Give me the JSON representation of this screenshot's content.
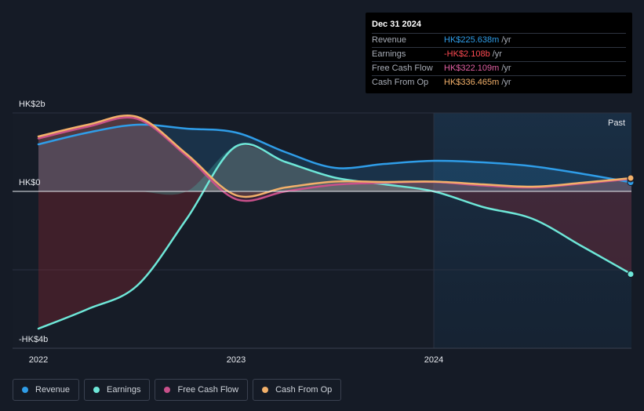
{
  "tooltip": {
    "date": "Dec 31 2024",
    "rows": [
      {
        "label": "Revenue",
        "value": "HK$225.638m",
        "unit": "/yr",
        "color": "#2f9de8"
      },
      {
        "label": "Earnings",
        "value": "-HK$2.108b",
        "unit": "/yr",
        "color": "#ff4a52"
      },
      {
        "label": "Free Cash Flow",
        "value": "HK$322.109m",
        "unit": "/yr",
        "color": "#e05fa2"
      },
      {
        "label": "Cash From Op",
        "value": "HK$336.465m",
        "unit": "/yr",
        "color": "#f2b06a"
      }
    ]
  },
  "past_label": "Past",
  "legend": [
    {
      "label": "Revenue",
      "color": "#2f9de8"
    },
    {
      "label": "Earnings",
      "color": "#6ee7d8"
    },
    {
      "label": "Free Cash Flow",
      "color": "#c8508a"
    },
    {
      "label": "Cash From Op",
      "color": "#f2b06a"
    }
  ],
  "chart_data": {
    "type": "area",
    "y_ticks": [
      {
        "value": 2,
        "label": "HK$2b"
      },
      {
        "value": 0,
        "label": "HK$0"
      },
      {
        "value": -4,
        "label": "-HK$4b"
      }
    ],
    "x_ticks": [
      {
        "value": 2022.0,
        "label": "2022"
      },
      {
        "value": 2023.0,
        "label": "2023"
      },
      {
        "value": 2024.0,
        "label": "2024"
      }
    ],
    "ylim": [
      -4,
      2
    ],
    "xlim": [
      2021.87,
      2024.99
    ],
    "forecast_start": 2024.0,
    "series": [
      {
        "name": "Revenue",
        "color": "#2f9de8",
        "x": [
          2022.0,
          2022.25,
          2022.5,
          2022.75,
          2023.0,
          2023.25,
          2023.5,
          2023.75,
          2024.0,
          2024.25,
          2024.5,
          2024.75,
          2025.0
        ],
        "y": [
          1.2,
          1.5,
          1.7,
          1.6,
          1.5,
          1.0,
          0.6,
          0.7,
          0.78,
          0.74,
          0.64,
          0.45,
          0.23
        ]
      },
      {
        "name": "Earnings",
        "color": "#6ee7d8",
        "x": [
          2022.0,
          2022.25,
          2022.5,
          2022.75,
          2023.0,
          2023.25,
          2023.5,
          2023.75,
          2024.0,
          2024.25,
          2024.5,
          2024.75,
          2025.0
        ],
        "y": [
          -3.5,
          -3.0,
          -2.4,
          -0.7,
          1.15,
          0.75,
          0.35,
          0.18,
          0.0,
          -0.4,
          -0.7,
          -1.4,
          -2.11
        ]
      },
      {
        "name": "Free Cash Flow",
        "color": "#c8508a",
        "x": [
          2022.0,
          2022.25,
          2022.5,
          2022.75,
          2023.0,
          2023.25,
          2023.5,
          2023.75,
          2024.0,
          2024.25,
          2024.5,
          2024.75,
          2025.0
        ],
        "y": [
          1.35,
          1.65,
          1.85,
          0.9,
          -0.2,
          0.0,
          0.17,
          0.22,
          0.24,
          0.15,
          0.1,
          0.2,
          0.32
        ]
      },
      {
        "name": "Cash From Op",
        "color": "#f2b06a",
        "x": [
          2022.0,
          2022.25,
          2022.5,
          2022.75,
          2023.0,
          2023.25,
          2023.5,
          2023.75,
          2024.0,
          2024.25,
          2024.5,
          2024.75,
          2025.0
        ],
        "y": [
          1.4,
          1.7,
          1.9,
          0.95,
          -0.1,
          0.1,
          0.25,
          0.24,
          0.25,
          0.18,
          0.12,
          0.22,
          0.34
        ]
      }
    ]
  }
}
